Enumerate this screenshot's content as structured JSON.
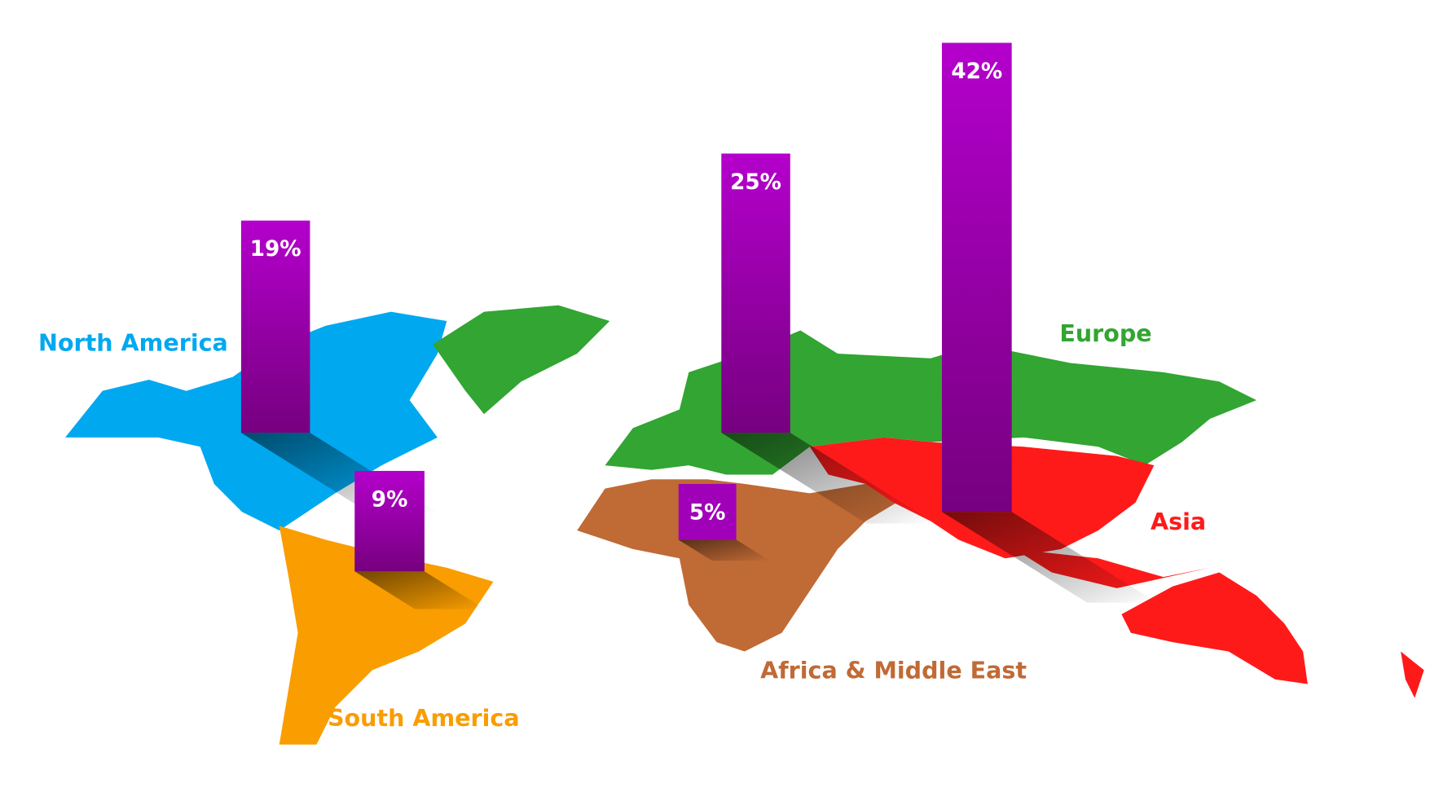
{
  "chart_data": {
    "type": "map-bar",
    "categories": [
      "North America",
      "South America",
      "Africa & Middle East",
      "Europe",
      "Asia"
    ],
    "values": [
      19,
      9,
      5,
      25,
      42
    ],
    "value_labels": [
      "19%",
      "9%",
      "5%",
      "25%",
      "42%"
    ],
    "colors": [
      "#00a8f0",
      "#f99d00",
      "#c06a35",
      "#32a532",
      "#ff1a1a"
    ],
    "bar_color": "#a000b8"
  }
}
